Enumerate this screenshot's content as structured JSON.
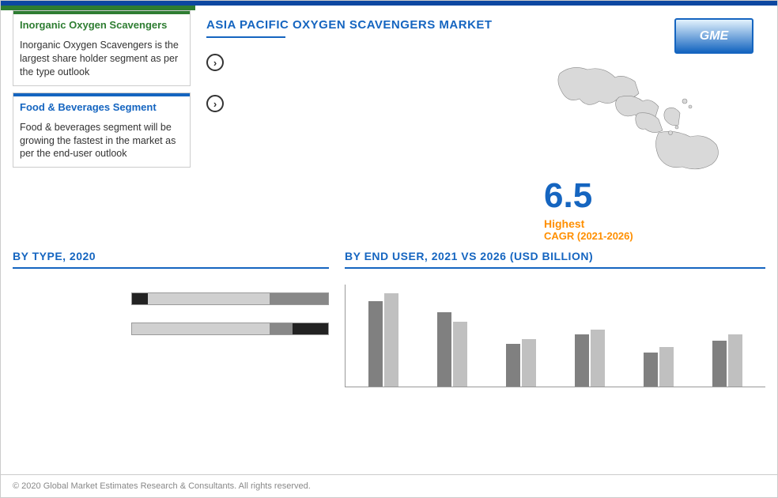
{
  "header": {
    "title": "ASIA PACIFIC OXYGEN SCAVENGERS MARKET",
    "logo_text": "GME"
  },
  "sidebar": {
    "box1": {
      "title": "Inorganic Oxygen Scavengers",
      "body": "Inorganic Oxygen Scavengers is the largest share holder segment as per the type outlook"
    },
    "box2": {
      "title": "Food & Beverages Segment",
      "body": "Food & beverages segment will be growing the fastest in the market as per the end-user outlook"
    }
  },
  "bullets": [
    "",
    ""
  ],
  "cagr": {
    "value": "6.5",
    "label1": "Highest",
    "label2": "CAGR (2021-2026)"
  },
  "chart1": {
    "title": "BY  TYPE, 2020",
    "type": "stacked-hbar",
    "categories": [
      "",
      ""
    ],
    "series": [
      [
        {
          "v": 8,
          "c": "#222222"
        },
        {
          "v": 62,
          "c": "#d0d0d0"
        },
        {
          "v": 30,
          "c": "#888888"
        }
      ],
      [
        {
          "v": 70,
          "c": "#d0d0d0"
        },
        {
          "v": 12,
          "c": "#888888"
        },
        {
          "v": 18,
          "c": "#222222"
        }
      ]
    ]
  },
  "chart2": {
    "title": "BY END USER, 2021 VS 2026 (USD BILLION)",
    "type": "grouped-vbar",
    "categories": [
      "",
      "",
      "",
      "",
      "",
      ""
    ],
    "series_colors": [
      "#808080",
      "#c0c0c0"
    ],
    "legend": [
      "",
      ""
    ],
    "max": 100,
    "data": [
      [
        90,
        98
      ],
      [
        78,
        68
      ],
      [
        45,
        50
      ],
      [
        55,
        60
      ],
      [
        36,
        42
      ],
      [
        48,
        55
      ]
    ]
  },
  "copyright": "© 2020 Global Market Estimates Research & Consultants. All rights reserved.",
  "colors": {
    "primary_blue": "#1565c0",
    "accent_green": "#2e7d32",
    "accent_orange": "#ff8f00",
    "map_fill": "#d9d9d9",
    "map_stroke": "#888888"
  }
}
